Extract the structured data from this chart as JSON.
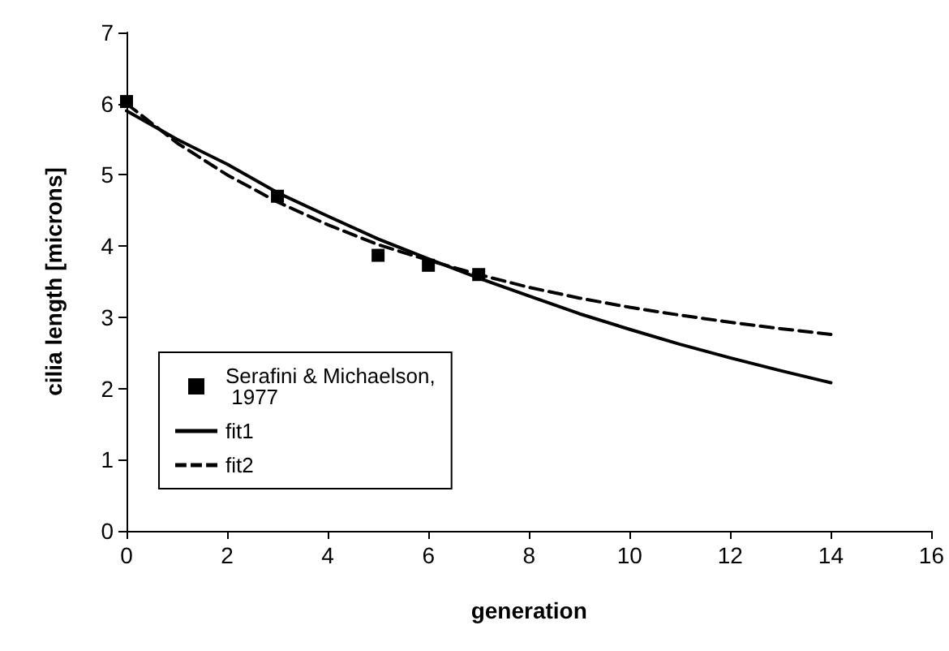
{
  "chart_data": {
    "type": "line",
    "xlabel": "generation",
    "ylabel": "cilia length [microns]",
    "xlim": [
      0,
      16
    ],
    "xticks": [
      0,
      2,
      4,
      6,
      8,
      10,
      12,
      14,
      16
    ],
    "ylim": [
      0,
      7
    ],
    "yticks": [
      0,
      1,
      2,
      3,
      4,
      5,
      6,
      7
    ],
    "grid": false,
    "legend": "bottom left",
    "series": [
      {
        "name": "Serafini & Michaelson, 1977",
        "type": "scatter",
        "marker": "square",
        "color": "#000000",
        "x": [
          0,
          3,
          5,
          6,
          7
        ],
        "values": [
          6.03,
          4.7,
          3.87,
          3.73,
          3.6
        ]
      },
      {
        "name": "fit1",
        "type": "line",
        "line_style": "solid",
        "marker": "none",
        "color": "#000000",
        "x": [
          0,
          1,
          2,
          3,
          4,
          5,
          6,
          7,
          8,
          9,
          10,
          11,
          12,
          13,
          14
        ],
        "values": [
          5.9,
          5.5,
          5.15,
          4.75,
          4.42,
          4.1,
          3.82,
          3.55,
          3.3,
          3.05,
          2.83,
          2.62,
          2.43,
          2.25,
          2.08
        ]
      },
      {
        "name": "fit2",
        "type": "line",
        "line_style": "dashed",
        "marker": "none",
        "color": "#000000",
        "x": [
          0,
          1,
          2,
          3,
          4,
          5,
          6,
          7,
          8,
          9,
          10,
          11,
          12,
          13,
          14
        ],
        "values": [
          6.0,
          5.45,
          5.0,
          4.62,
          4.3,
          4.02,
          3.8,
          3.6,
          3.42,
          3.27,
          3.14,
          3.03,
          2.93,
          2.84,
          2.76
        ]
      }
    ]
  }
}
